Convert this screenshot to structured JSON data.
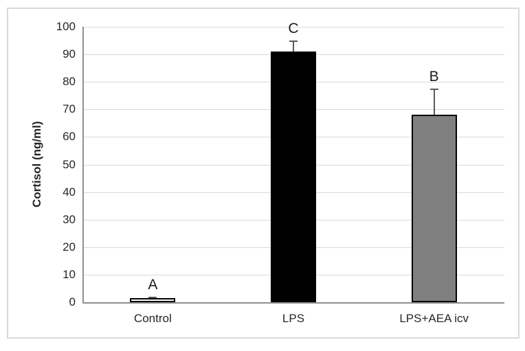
{
  "chart_data": {
    "type": "bar",
    "title": "",
    "xlabel": "",
    "ylabel": "Cortisol (ng/ml)",
    "ylim": [
      0,
      100
    ],
    "ytick_step": 10,
    "ytick_labels": [
      "0",
      "10",
      "20",
      "30",
      "40",
      "50",
      "60",
      "70",
      "80",
      "90",
      "100"
    ],
    "grid": true,
    "legend": "none",
    "categories": [
      "Control",
      "LPS",
      "LPS+AEA icv"
    ],
    "values": [
      1.5,
      91,
      68
    ],
    "errors_plus": [
      0.4,
      4,
      9.5
    ],
    "bar_annotations": [
      "A",
      "C",
      "B"
    ],
    "colors": {
      "bar_fills": [
        "#ffffff",
        "#000000",
        "#808080"
      ],
      "bar_border": "#000000",
      "error_bar": "#595959",
      "gridline": "#d9d9d9",
      "axis_line": "#909090",
      "text": "#262626",
      "frame_border": "#d9d9d9",
      "background": "#ffffff"
    }
  }
}
